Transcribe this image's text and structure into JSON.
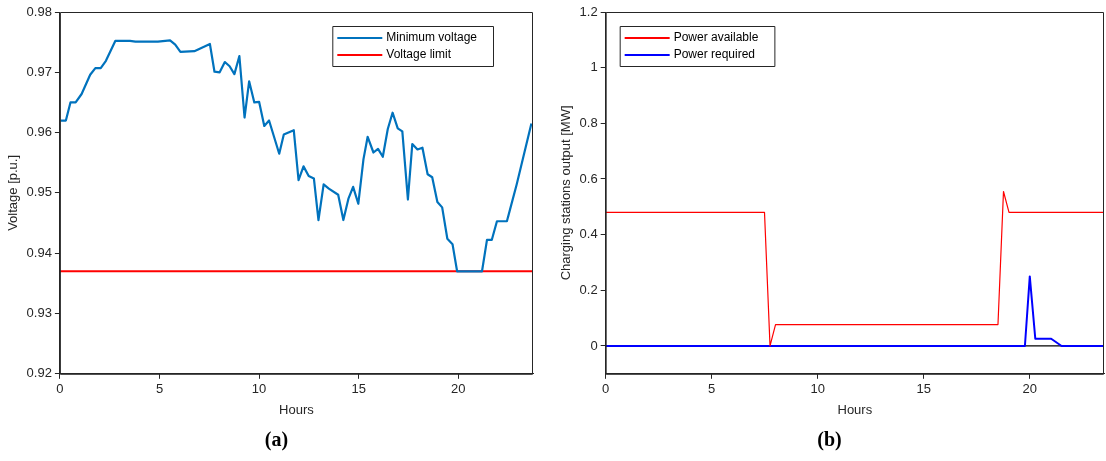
{
  "chart_data": [
    {
      "type": "line",
      "xlabel": "Hours",
      "ylabel": "Voltage [p.u.]",
      "annotations": [
        "(a)"
      ],
      "xlim": [
        0,
        23.75
      ],
      "ylim": [
        0.92,
        0.98
      ],
      "xticks": [
        0,
        5,
        10,
        15,
        20
      ],
      "yticks": [
        0.92,
        0.93,
        0.94,
        0.95,
        0.96,
        0.97,
        0.98
      ],
      "grid": false,
      "legend": "top right",
      "marker": "none",
      "line_style": "solid",
      "series": [
        {
          "name": "Minimum voltage",
          "color": "#0072bd",
          "x": [
            0.04,
            0.3,
            0.53,
            0.79,
            1.09,
            1.52,
            1.78,
            2.05,
            2.31,
            2.78,
            3.52,
            3.79,
            4.92,
            5.53,
            5.79,
            6.05,
            6.75,
            7.53,
            7.76,
            8.02,
            8.28,
            8.52,
            8.76,
            9.01,
            9.27,
            9.5,
            9.76,
            10.0,
            10.26,
            10.5,
            11.01,
            11.24,
            11.74,
            11.98,
            12.23,
            12.49,
            12.75,
            12.98,
            13.24,
            13.5,
            13.97,
            14.23,
            14.49,
            14.72,
            14.98,
            15.24,
            15.45,
            15.74,
            15.97,
            16.21,
            16.46,
            16.7,
            16.96,
            17.19,
            17.47,
            17.69,
            17.95,
            18.2,
            18.46,
            18.69,
            18.95,
            19.19,
            19.45,
            19.71,
            19.94,
            21.19,
            21.44,
            21.68,
            21.94,
            22.44,
            22.93,
            23.67
          ],
          "values": [
            0.962,
            0.962,
            0.965,
            0.965,
            0.9664,
            0.9696,
            0.9707,
            0.9707,
            0.9719,
            0.9752,
            0.9752,
            0.9751,
            0.9751,
            0.9753,
            0.9746,
            0.9734,
            0.9735,
            0.9747,
            0.9701,
            0.97,
            0.9717,
            0.971,
            0.9697,
            0.9727,
            0.9625,
            0.9685,
            0.965,
            0.9651,
            0.9611,
            0.962,
            0.9565,
            0.9597,
            0.9604,
            0.9521,
            0.9544,
            0.9528,
            0.9524,
            0.9455,
            0.9514,
            0.9507,
            0.9497,
            0.9455,
            0.9491,
            0.951,
            0.9482,
            0.9556,
            0.9593,
            0.9567,
            0.9573,
            0.956,
            0.9606,
            0.9633,
            0.9607,
            0.9602,
            0.9489,
            0.9581,
            0.9572,
            0.9575,
            0.9531,
            0.9526,
            0.9485,
            0.9476,
            0.9424,
            0.9415,
            0.937,
            0.937,
            0.9422,
            0.9422,
            0.9453,
            0.9453,
            0.9514,
            0.9615
          ]
        },
        {
          "name": "Voltage limit",
          "color": "#ff0000",
          "x": [
            0,
            23.75
          ],
          "values": [
            0.937,
            0.937
          ]
        }
      ]
    },
    {
      "type": "line",
      "xlabel": "Hours",
      "ylabel": "Charging stations output [MW]",
      "annotations": [
        "(b)"
      ],
      "xlim": [
        0,
        23.5
      ],
      "ylim": [
        -0.1,
        1.2
      ],
      "xticks": [
        0,
        5,
        10,
        15,
        20
      ],
      "yticks": [
        0,
        0.2,
        0.4,
        0.6,
        0.8,
        1,
        1.2
      ],
      "grid": false,
      "legend": "top left",
      "marker": "none",
      "line_style": "solid",
      "ref_lines": [
        {
          "axis": "y",
          "value": 0,
          "color": "#000000"
        }
      ],
      "series": [
        {
          "name": "Power available",
          "color": "#ff0000",
          "x": [
            0,
            7.49,
            7.75,
            8.01,
            18.5,
            18.76,
            19.02,
            23.5
          ],
          "values": [
            0.48,
            0.48,
            0,
            0.077,
            0.077,
            0.555,
            0.48,
            0.48
          ]
        },
        {
          "name": "Power required",
          "color": "#0000ff",
          "x": [
            0,
            19.77,
            20.0,
            20.26,
            21.01,
            21.5,
            23.5
          ],
          "values": [
            0,
            0,
            0.25,
            0.026,
            0.026,
            0,
            0
          ]
        }
      ]
    }
  ]
}
